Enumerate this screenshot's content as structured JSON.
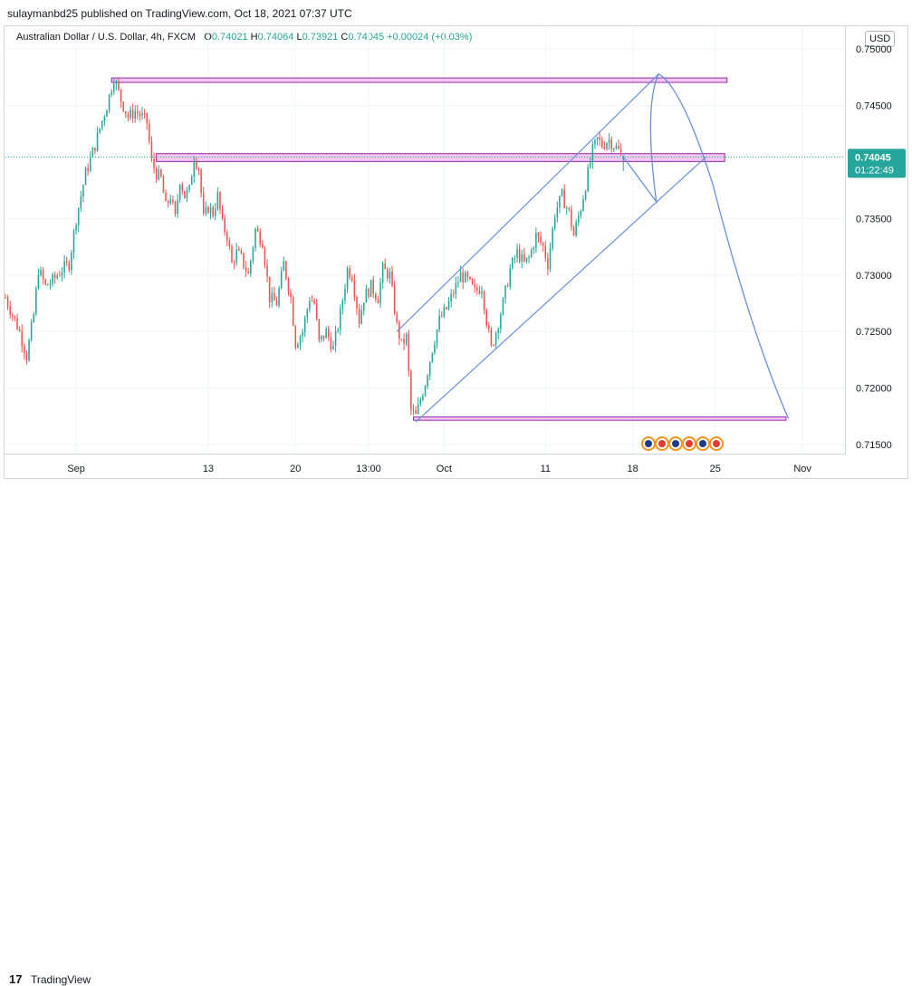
{
  "header": {
    "publisher": "sulaymanbd25 published on TradingView.com, Oct 18, 2021 07:37 UTC"
  },
  "legend": {
    "symbol": "Australian Dollar / U.S. Dollar, 4h, FXCM",
    "open_label": "O",
    "open": "0.74021",
    "high_label": "H",
    "high": "0.74064",
    "low_label": "L",
    "low": "0.73921",
    "close_label": "C",
    "close": "0.74045",
    "change": "+0.00024 (+0.03%)"
  },
  "currency": "USD",
  "last_price": {
    "value": "0.74045",
    "countdown": "01:22:49"
  },
  "footer": {
    "brand": "TradingView",
    "logo_text": "17"
  },
  "colors": {
    "up": "#26a69a",
    "down": "#ef5350",
    "drawing": "#6a8fd8",
    "zone_fill": "#f1c8f0",
    "zone_border": "#9c27b0",
    "badge": "#26a69a"
  },
  "chart_data": {
    "type": "candlestick",
    "title": "Australian Dollar / U.S. Dollar, 4h, FXCM",
    "xlabel": "",
    "ylabel": "",
    "ylim": [
      0.715,
      0.7505
    ],
    "y_ticks": [
      "0.75000",
      "0.74500",
      "0.74045",
      "0.73500",
      "0.73000",
      "0.72500",
      "0.72000",
      "0.71500"
    ],
    "x_ticks": [
      "Sep",
      "13",
      "20",
      "13:00",
      "Oct",
      "11",
      "18",
      "25",
      "Nov"
    ],
    "x_range_bars": [
      0,
      356
    ],
    "x_tick_bars": [
      30,
      86,
      123,
      154,
      186,
      229,
      266,
      301,
      338
    ],
    "grid": true,
    "series_close_anchor": [
      [
        0,
        0.728
      ],
      [
        6,
        0.725
      ],
      [
        9,
        0.7228
      ],
      [
        12,
        0.7265
      ],
      [
        14,
        0.7305
      ],
      [
        17,
        0.729
      ],
      [
        20,
        0.7295
      ],
      [
        24,
        0.7305
      ],
      [
        27,
        0.731
      ],
      [
        30,
        0.735
      ],
      [
        34,
        0.739
      ],
      [
        38,
        0.7415
      ],
      [
        40,
        0.743
      ],
      [
        43,
        0.745
      ],
      [
        46,
        0.7475
      ],
      [
        49,
        0.7455
      ],
      [
        52,
        0.744
      ],
      [
        55,
        0.7445
      ],
      [
        58,
        0.744
      ],
      [
        60,
        0.7435
      ],
      [
        62,
        0.74
      ],
      [
        64,
        0.739
      ],
      [
        66,
        0.7385
      ],
      [
        68,
        0.736
      ],
      [
        70,
        0.737
      ],
      [
        72,
        0.735
      ],
      [
        74,
        0.7385
      ],
      [
        76,
        0.737
      ],
      [
        78,
        0.7375
      ],
      [
        80,
        0.7405
      ],
      [
        82,
        0.7395
      ],
      [
        84,
        0.735
      ],
      [
        86,
        0.736
      ],
      [
        88,
        0.7355
      ],
      [
        90,
        0.737
      ],
      [
        92,
        0.7345
      ],
      [
        94,
        0.7335
      ],
      [
        96,
        0.731
      ],
      [
        98,
        0.732
      ],
      [
        100,
        0.7315
      ],
      [
        103,
        0.73
      ],
      [
        106,
        0.734
      ],
      [
        109,
        0.733
      ],
      [
        112,
        0.728
      ],
      [
        115,
        0.7275
      ],
      [
        118,
        0.731
      ],
      [
        121,
        0.728
      ],
      [
        123,
        0.724
      ],
      [
        126,
        0.725
      ],
      [
        129,
        0.728
      ],
      [
        131,
        0.7275
      ],
      [
        133,
        0.724
      ],
      [
        136,
        0.725
      ],
      [
        139,
        0.7235
      ],
      [
        142,
        0.7265
      ],
      [
        145,
        0.7305
      ],
      [
        147,
        0.73
      ],
      [
        150,
        0.726
      ],
      [
        152,
        0.728
      ],
      [
        155,
        0.729
      ],
      [
        158,
        0.728
      ],
      [
        160,
        0.7305
      ],
      [
        163,
        0.73
      ],
      [
        166,
        0.7255
      ],
      [
        168,
        0.7238
      ],
      [
        170,
        0.7245
      ],
      [
        172,
        0.718
      ],
      [
        174,
        0.7175
      ],
      [
        176,
        0.719
      ],
      [
        178,
        0.7205
      ],
      [
        181,
        0.7235
      ],
      [
        184,
        0.726
      ],
      [
        187,
        0.727
      ],
      [
        189,
        0.728
      ],
      [
        191,
        0.729
      ],
      [
        193,
        0.73
      ],
      [
        196,
        0.7295
      ],
      [
        199,
        0.7285
      ],
      [
        202,
        0.729
      ],
      [
        204,
        0.726
      ],
      [
        206,
        0.7235
      ],
      [
        208,
        0.725
      ],
      [
        211,
        0.7275
      ],
      [
        214,
        0.7305
      ],
      [
        217,
        0.732
      ],
      [
        220,
        0.731
      ],
      [
        222,
        0.7315
      ],
      [
        225,
        0.7335
      ],
      [
        228,
        0.7325
      ],
      [
        230,
        0.731
      ],
      [
        233,
        0.7355
      ],
      [
        236,
        0.737
      ],
      [
        239,
        0.7355
      ],
      [
        241,
        0.7335
      ],
      [
        244,
        0.736
      ],
      [
        247,
        0.739
      ],
      [
        249,
        0.741
      ],
      [
        251,
        0.742
      ],
      [
        253,
        0.7415
      ],
      [
        256,
        0.742
      ],
      [
        258,
        0.7415
      ],
      [
        260,
        0.741
      ],
      [
        262,
        0.7405
      ]
    ],
    "last_bar": {
      "open": 0.74021,
      "high": 0.74064,
      "low": 0.73921,
      "close": 0.74045
    },
    "zones": [
      {
        "from_bar": 45,
        "to_bar": 306,
        "top": 0.74745,
        "bottom": 0.74705
      },
      {
        "from_bar": 64,
        "to_bar": 305,
        "top": 0.74075,
        "bottom": 0.74005
      },
      {
        "from_bar": 173,
        "to_bar": 331,
        "top": 0.71745,
        "bottom": 0.71715
      }
    ],
    "channel": [
      {
        "from": [
          166,
          0.725
        ],
        "to": [
          277,
          0.7478
        ]
      },
      {
        "from": [
          174,
          0.717
        ],
        "to": [
          297,
          0.74045
        ]
      }
    ],
    "projection": [
      [
        262,
        0.74045
      ],
      [
        276,
        0.7365
      ],
      [
        273,
        0.745
      ],
      [
        277,
        0.7478
      ],
      [
        283,
        0.746
      ],
      [
        300,
        0.738
      ],
      [
        316,
        0.725
      ],
      [
        332,
        0.7173
      ]
    ],
    "events_count": 6
  }
}
